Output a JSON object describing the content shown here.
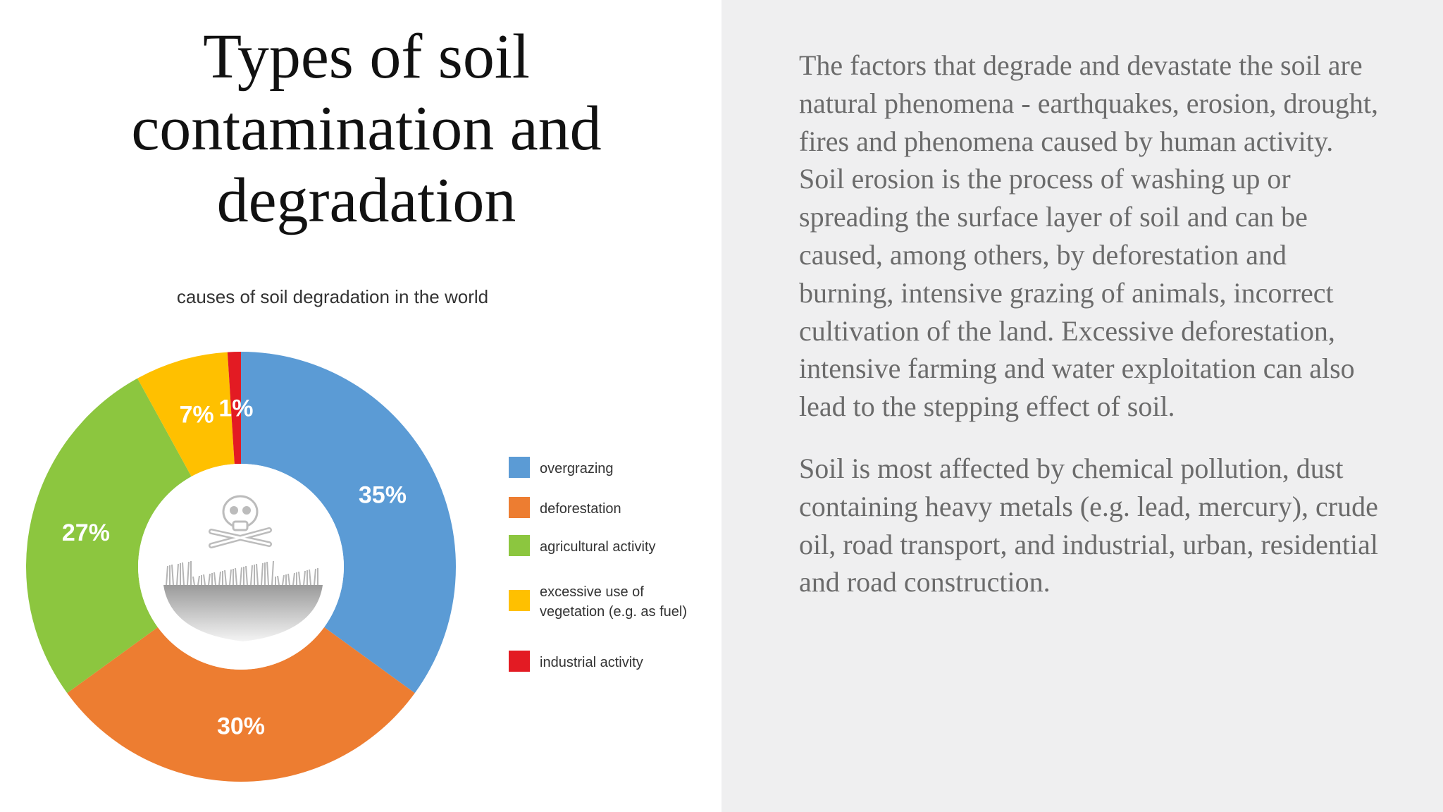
{
  "slide": {
    "title_lines": [
      "Types of soil",
      "contamination and",
      "degradation"
    ],
    "paragraphs": [
      "The factors that degrade and devastate the soil are natural phenomena - earthquakes, erosion, drought, fires and phenomena caused by human activity. Soil erosion is the process of washing up or spreading the surface layer of soil and can be caused, among others, by deforestation and burning, intensive grazing of animals, incorrect cultivation of the land. Excessive deforestation, intensive farming and water exploitation can also lead to the stepping effect of soil.",
      "Soil is most affected by chemical pollution, dust containing heavy metals (e.g. lead, mercury), crude oil, road transport, and industrial, urban, residential and road construction."
    ]
  },
  "chart_data": {
    "type": "pie",
    "variant": "donut",
    "title": "causes of soil degradation in the world",
    "legend_position": "right",
    "center_icon": "skull-crossbones-icon",
    "slices": [
      {
        "label": "overgrazing",
        "value": 35,
        "display": "35%",
        "color": "#5b9bd5"
      },
      {
        "label": "deforestation",
        "value": 30,
        "display": "30%",
        "color": "#ed7d31"
      },
      {
        "label": "agricultural activity",
        "value": 27,
        "display": "27%",
        "color": "#8cc63f"
      },
      {
        "label": "excessive use of vegetation (e.g. as fuel)",
        "legend_lines": [
          "excessive use of",
          "vegetation (e.g. as fuel)"
        ],
        "value": 7,
        "display": "7%",
        "color": "#ffc000"
      },
      {
        "label": "industrial activity",
        "value": 1,
        "display": "1%",
        "color": "#e31b23"
      }
    ]
  }
}
